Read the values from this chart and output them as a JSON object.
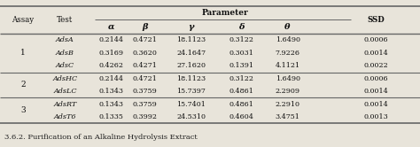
{
  "caption": "3.6.2. Purification of an Alkaline Hydrolysis Extract",
  "rows": [
    [
      "1",
      "AdsA",
      "0.2144",
      "0.4721",
      "18.1123",
      "0.3122",
      "1.6490",
      "0.0006"
    ],
    [
      "",
      "AdsB",
      "0.3169",
      "0.3620",
      "24.1647",
      "0.3031",
      "7.9226",
      "0.0014"
    ],
    [
      "",
      "AdsC",
      "0.4262",
      "0.4271",
      "27.1620",
      "0.1391",
      "4.1121",
      "0.0022"
    ],
    [
      "2",
      "AdsHC",
      "0.2144",
      "0.4721",
      "18.1123",
      "0.3122",
      "1.6490",
      "0.0006"
    ],
    [
      "",
      "AdsLC",
      "0.1343",
      "0.3759",
      "15.7397",
      "0.4861",
      "2.2909",
      "0.0014"
    ],
    [
      "3",
      "AdsRT",
      "0.1343",
      "0.3759",
      "15.7401",
      "0.4861",
      "2.2910",
      "0.0014"
    ],
    [
      "",
      "AdsT6",
      "0.1335",
      "0.3992",
      "24.5310",
      "0.4604",
      "3.4751",
      "0.0013"
    ]
  ],
  "assay_groups": {
    "1": [
      0,
      1,
      2
    ],
    "2": [
      3,
      4
    ],
    "3": [
      5,
      6
    ]
  },
  "param_labels": [
    "α",
    "β",
    "γ",
    "δ",
    "θ"
  ],
  "bg_color": "#e8e4da",
  "line_color": "#666666",
  "text_color": "#111111"
}
